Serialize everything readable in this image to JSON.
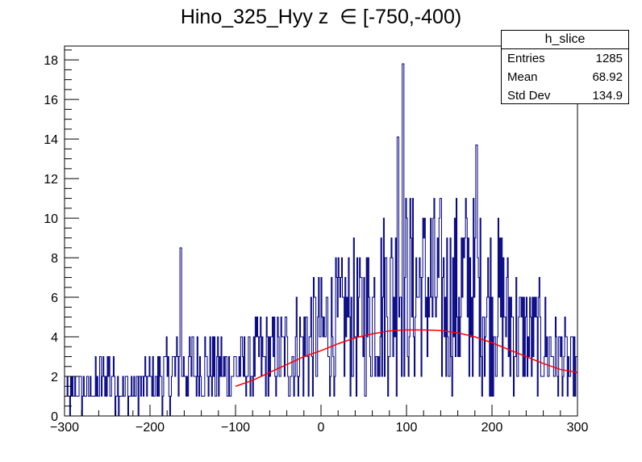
{
  "title": "Hino_325_Hyy z  ∈ [-750,-400)",
  "stats": {
    "name": "h_slice",
    "rows": [
      {
        "label": "Entries",
        "value": "1285"
      },
      {
        "label": "Mean",
        "value": "68.92"
      },
      {
        "label": "Std Dev",
        "value": "134.9"
      }
    ]
  },
  "colors": {
    "histogram": "#000080",
    "fit": "#ff0000",
    "axis": "#000000"
  },
  "chart_data": {
    "type": "bar",
    "title": "Hino_325_Hyy z  ∈ [-750,-400)",
    "xlabel": "",
    "ylabel": "",
    "xlim": [
      -300,
      300
    ],
    "ylim": [
      0,
      18.7
    ],
    "x_ticks": [
      -300,
      -200,
      -100,
      0,
      100,
      200,
      300
    ],
    "x_tick_labels": [
      "−300",
      "−200",
      "−100",
      "0",
      "100",
      "200",
      "300"
    ],
    "y_ticks": [
      0,
      2,
      4,
      6,
      8,
      10,
      12,
      14,
      16,
      18
    ],
    "y_tick_labels": [
      "0",
      "2",
      "4",
      "6",
      "8",
      "10",
      "12",
      "14",
      "16",
      "18"
    ],
    "grid": false,
    "series": [
      {
        "style": "histogram",
        "bin_width": 20,
        "x": [
          -290,
          -270,
          -250,
          -230,
          -210,
          -190,
          -170,
          -150,
          -130,
          -110,
          -90,
          -70,
          -50,
          -30,
          -10,
          10,
          30,
          50,
          70,
          90,
          110,
          130,
          150,
          170,
          190,
          210,
          230,
          250,
          270,
          290
        ],
        "values": [
          1.0,
          1.2,
          2.0,
          1.3,
          1.5,
          1.7,
          2.3,
          2.4,
          2.5,
          2.3,
          2.4,
          2.8,
          3.0,
          3.3,
          4.0,
          4.3,
          4.8,
          4.8,
          5.6,
          6.6,
          6.4,
          6.5,
          5.7,
          6.8,
          5.7,
          5.5,
          4.3,
          3.8,
          3.2,
          2.4
        ],
        "peaks": [
          {
            "x": 96,
            "y": 17.8
          },
          {
            "x": 182,
            "y": 13.7
          },
          {
            "x": 90,
            "y": 14.1
          },
          {
            "x": -164,
            "y": 8.5
          }
        ]
      },
      {
        "style": "fit-curve",
        "x": [
          -100,
          -80,
          -60,
          -40,
          -20,
          0,
          20,
          40,
          60,
          80,
          100,
          120,
          140,
          160,
          180,
          200,
          220,
          240,
          260,
          280,
          300
        ],
        "values": [
          1.5,
          1.8,
          2.2,
          2.6,
          3.0,
          3.3,
          3.65,
          3.95,
          4.15,
          4.3,
          4.35,
          4.35,
          4.32,
          4.2,
          4.0,
          3.7,
          3.35,
          3.0,
          2.65,
          2.35,
          2.2
        ]
      }
    ]
  }
}
